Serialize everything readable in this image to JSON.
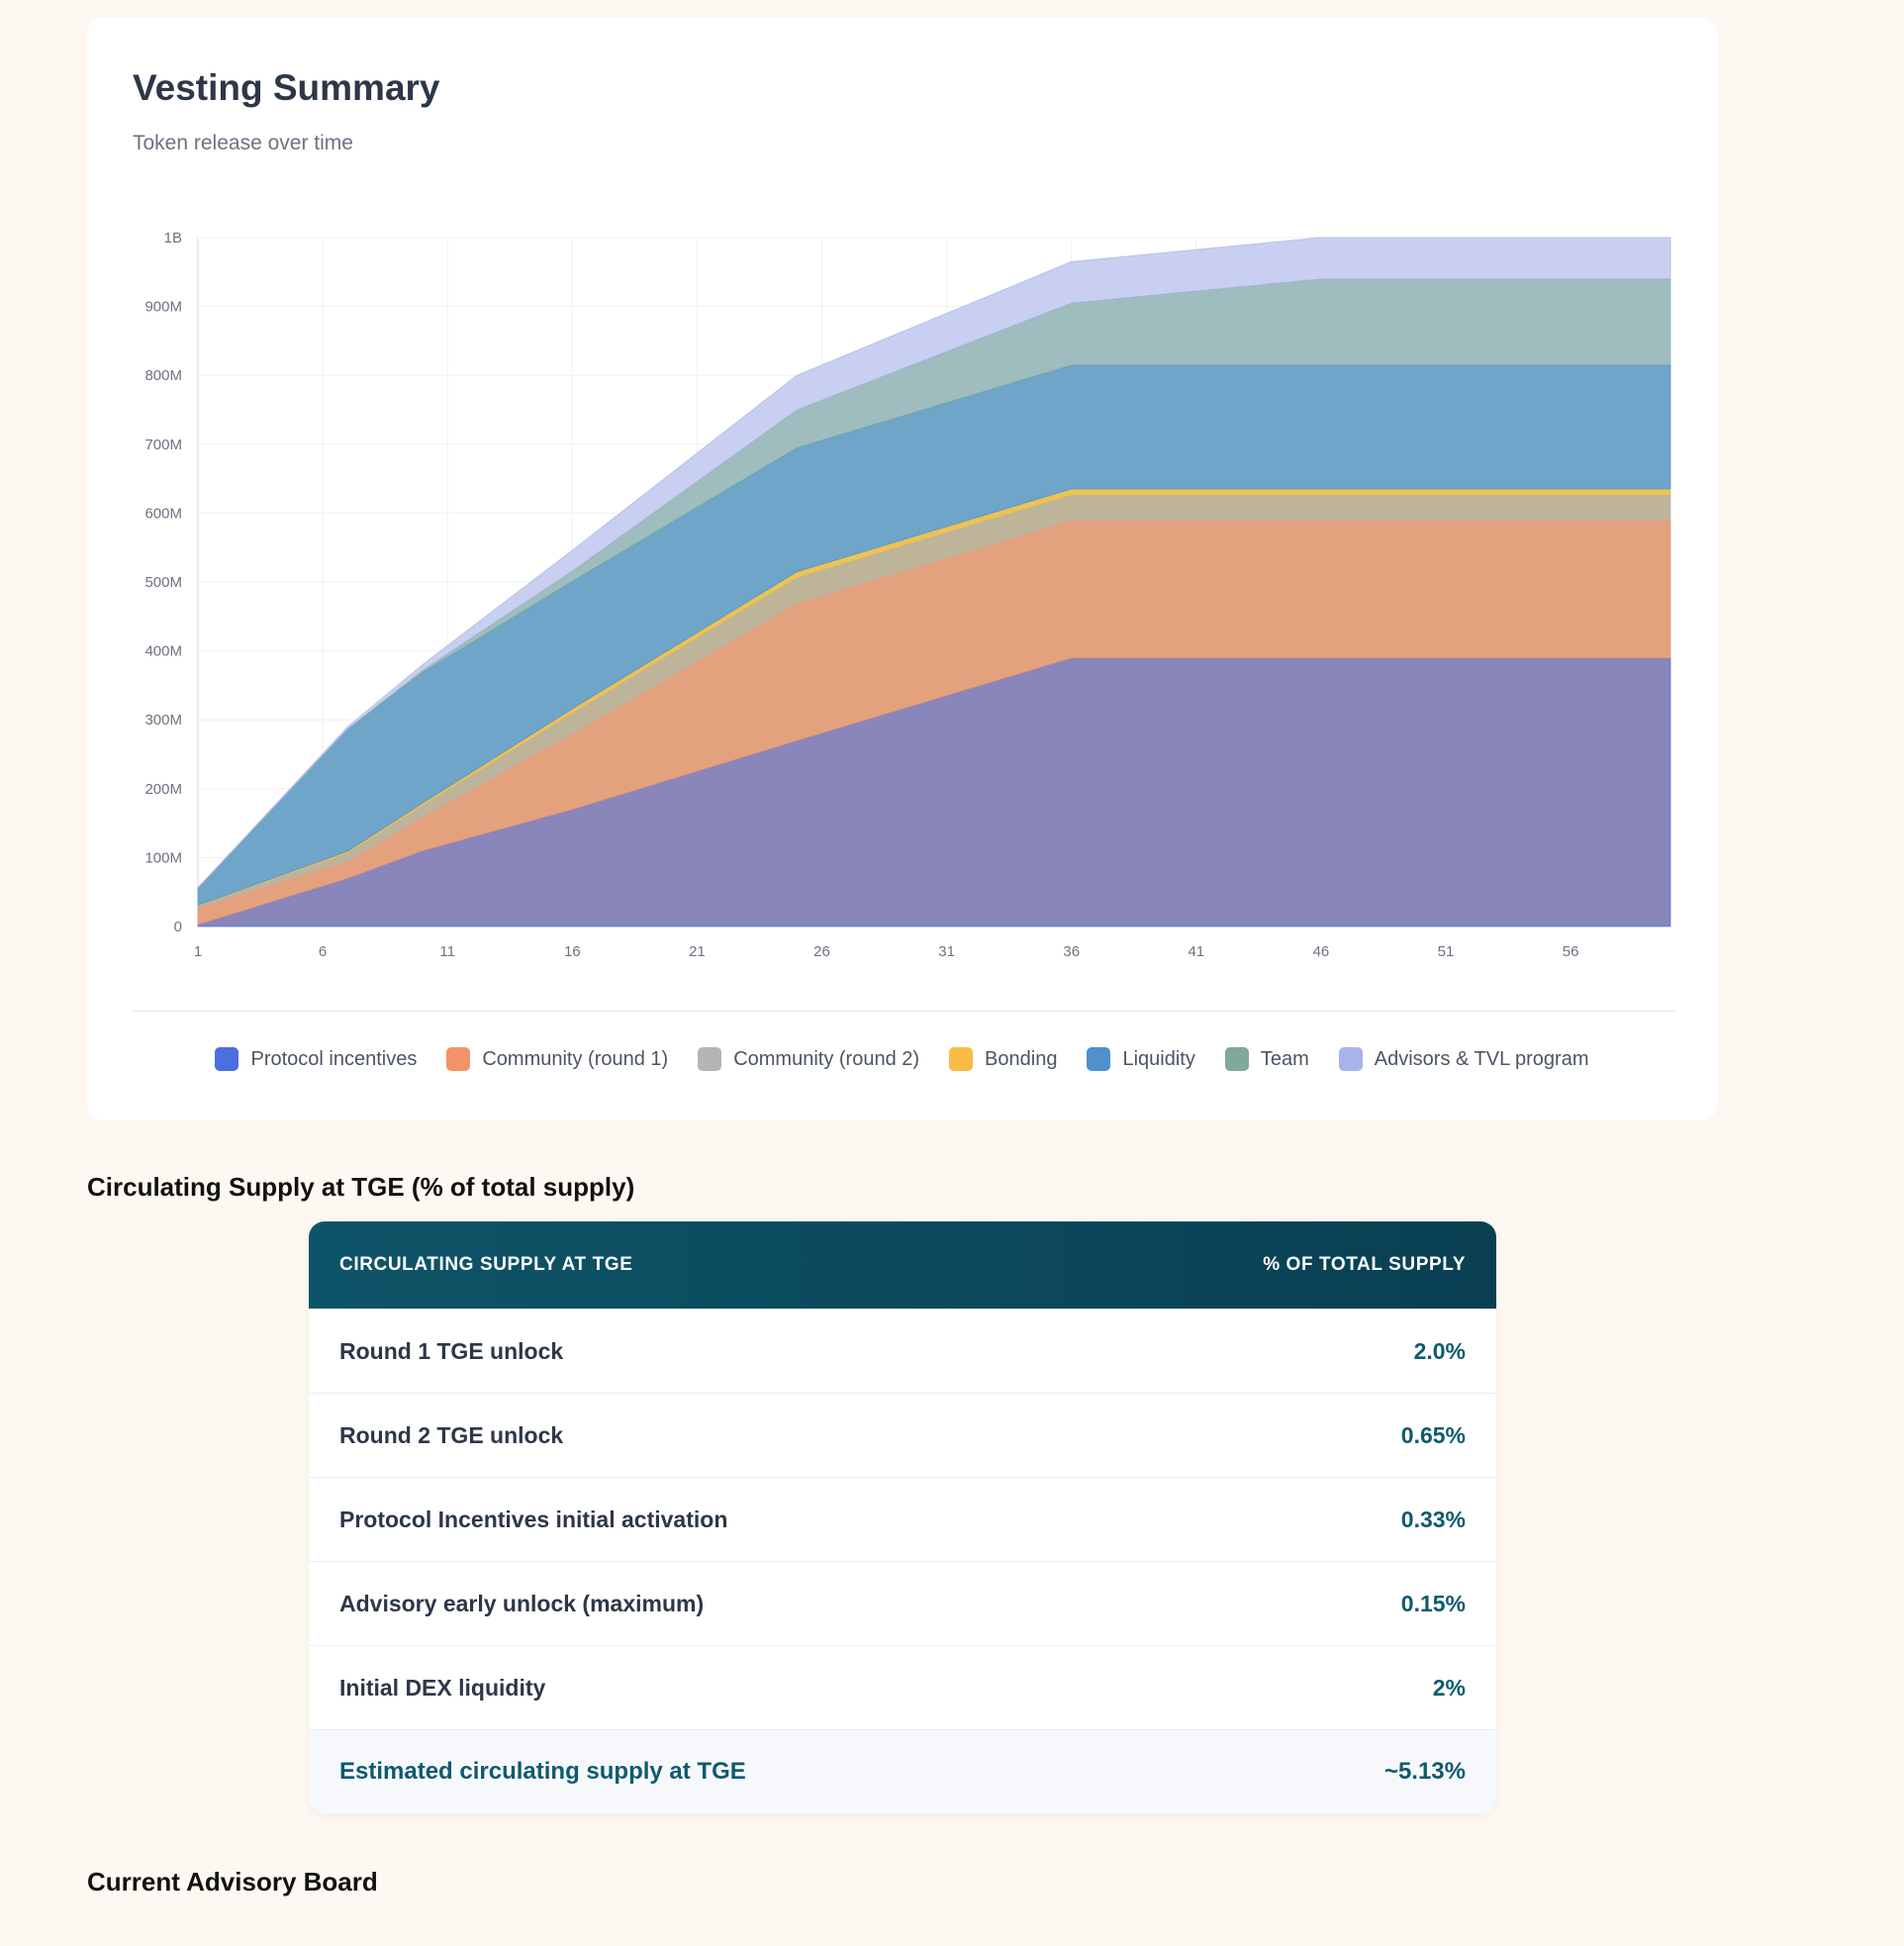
{
  "card": {
    "title": "Vesting Summary",
    "subtitle": "Token release over time"
  },
  "chart_data": {
    "type": "area",
    "stacked": true,
    "title": "Vesting Summary",
    "subtitle": "Token release over time",
    "xlabel": "",
    "ylabel": "",
    "x": [
      1,
      7,
      10,
      16,
      25,
      36,
      46,
      60
    ],
    "xlim": [
      1,
      60
    ],
    "xticks": [
      1,
      6,
      11,
      16,
      21,
      26,
      31,
      36,
      41,
      46,
      51,
      56
    ],
    "ylim": [
      0,
      1000000000
    ],
    "yticks": [
      0,
      100000000,
      200000000,
      300000000,
      400000000,
      500000000,
      600000000,
      700000000,
      800000000,
      900000000,
      1000000000
    ],
    "ytick_labels": [
      "0",
      "100M",
      "200M",
      "300M",
      "400M",
      "500M",
      "600M",
      "700M",
      "800M",
      "900M",
      "1B"
    ],
    "grid": true,
    "legend_position": "bottom",
    "series": [
      {
        "name": "Protocol incentives",
        "color": "#4c6fe0",
        "fill": "#8886bb",
        "values": [
          3000000,
          70000000,
          110000000,
          170000000,
          270000000,
          390000000,
          390000000,
          390000000
        ]
      },
      {
        "name": "Community (round 1)",
        "color": "#f4936a",
        "fill": "#e4a17e",
        "values": [
          25000000,
          25000000,
          50000000,
          110000000,
          200000000,
          200000000,
          200000000,
          200000000
        ]
      },
      {
        "name": "Community (round 2)",
        "color": "#b5b5b5",
        "fill": "#bdb49a",
        "values": [
          3000000,
          12000000,
          16000000,
          30000000,
          37000000,
          37000000,
          37000000,
          37000000
        ]
      },
      {
        "name": "Bonding",
        "color": "#f8bc45",
        "fill": "#ecc355",
        "values": [
          0,
          2000000,
          3000000,
          6000000,
          8000000,
          8000000,
          8000000,
          8000000
        ]
      },
      {
        "name": "Liquidity",
        "color": "#4f92cb",
        "fill": "#6ea5c8",
        "values": [
          25000000,
          178000000,
          190000000,
          185000000,
          180000000,
          180000000,
          180000000,
          180000000
        ]
      },
      {
        "name": "Team",
        "color": "#7fa99a",
        "fill": "#9fbcbe",
        "values": [
          0,
          0,
          3000000,
          15000000,
          55000000,
          90000000,
          125000000,
          125000000
        ]
      },
      {
        "name": "Advisors & TVL program",
        "color": "#a8b3ea",
        "fill": "#c9cff0",
        "values": [
          0,
          3000000,
          8000000,
          30000000,
          50000000,
          60000000,
          60000000,
          60000000
        ]
      }
    ]
  },
  "supply_section": {
    "heading": "Circulating Supply at TGE (% of total supply)",
    "columns": [
      "CIRCULATING SUPPLY AT TGE",
      "% OF TOTAL SUPPLY"
    ],
    "rows": [
      {
        "label": "Round 1 TGE unlock",
        "value": "2.0%"
      },
      {
        "label": "Round 2 TGE unlock",
        "value": "0.65%"
      },
      {
        "label": "Protocol Incentives initial activation",
        "value": "0.33%"
      },
      {
        "label": "Advisory early unlock (maximum)",
        "value": "0.15%"
      },
      {
        "label": "Initial DEX liquidity",
        "value": "2%"
      }
    ],
    "total": {
      "label": "Estimated circulating supply at TGE",
      "value": "~5.13%"
    }
  },
  "advisory_section": {
    "heading": "Current Advisory Board"
  }
}
